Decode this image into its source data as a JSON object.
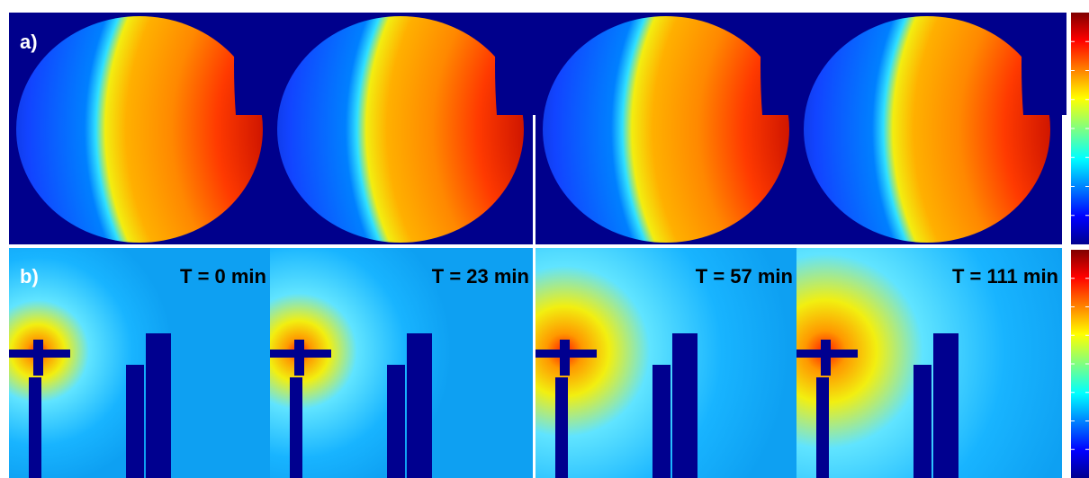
{
  "panel_a": {
    "label": "a)"
  },
  "panel_b": {
    "label": "b)",
    "times": [
      "T = 0 min",
      "T = 23 min",
      "T = 57 min",
      "T = 111 min"
    ]
  }
}
